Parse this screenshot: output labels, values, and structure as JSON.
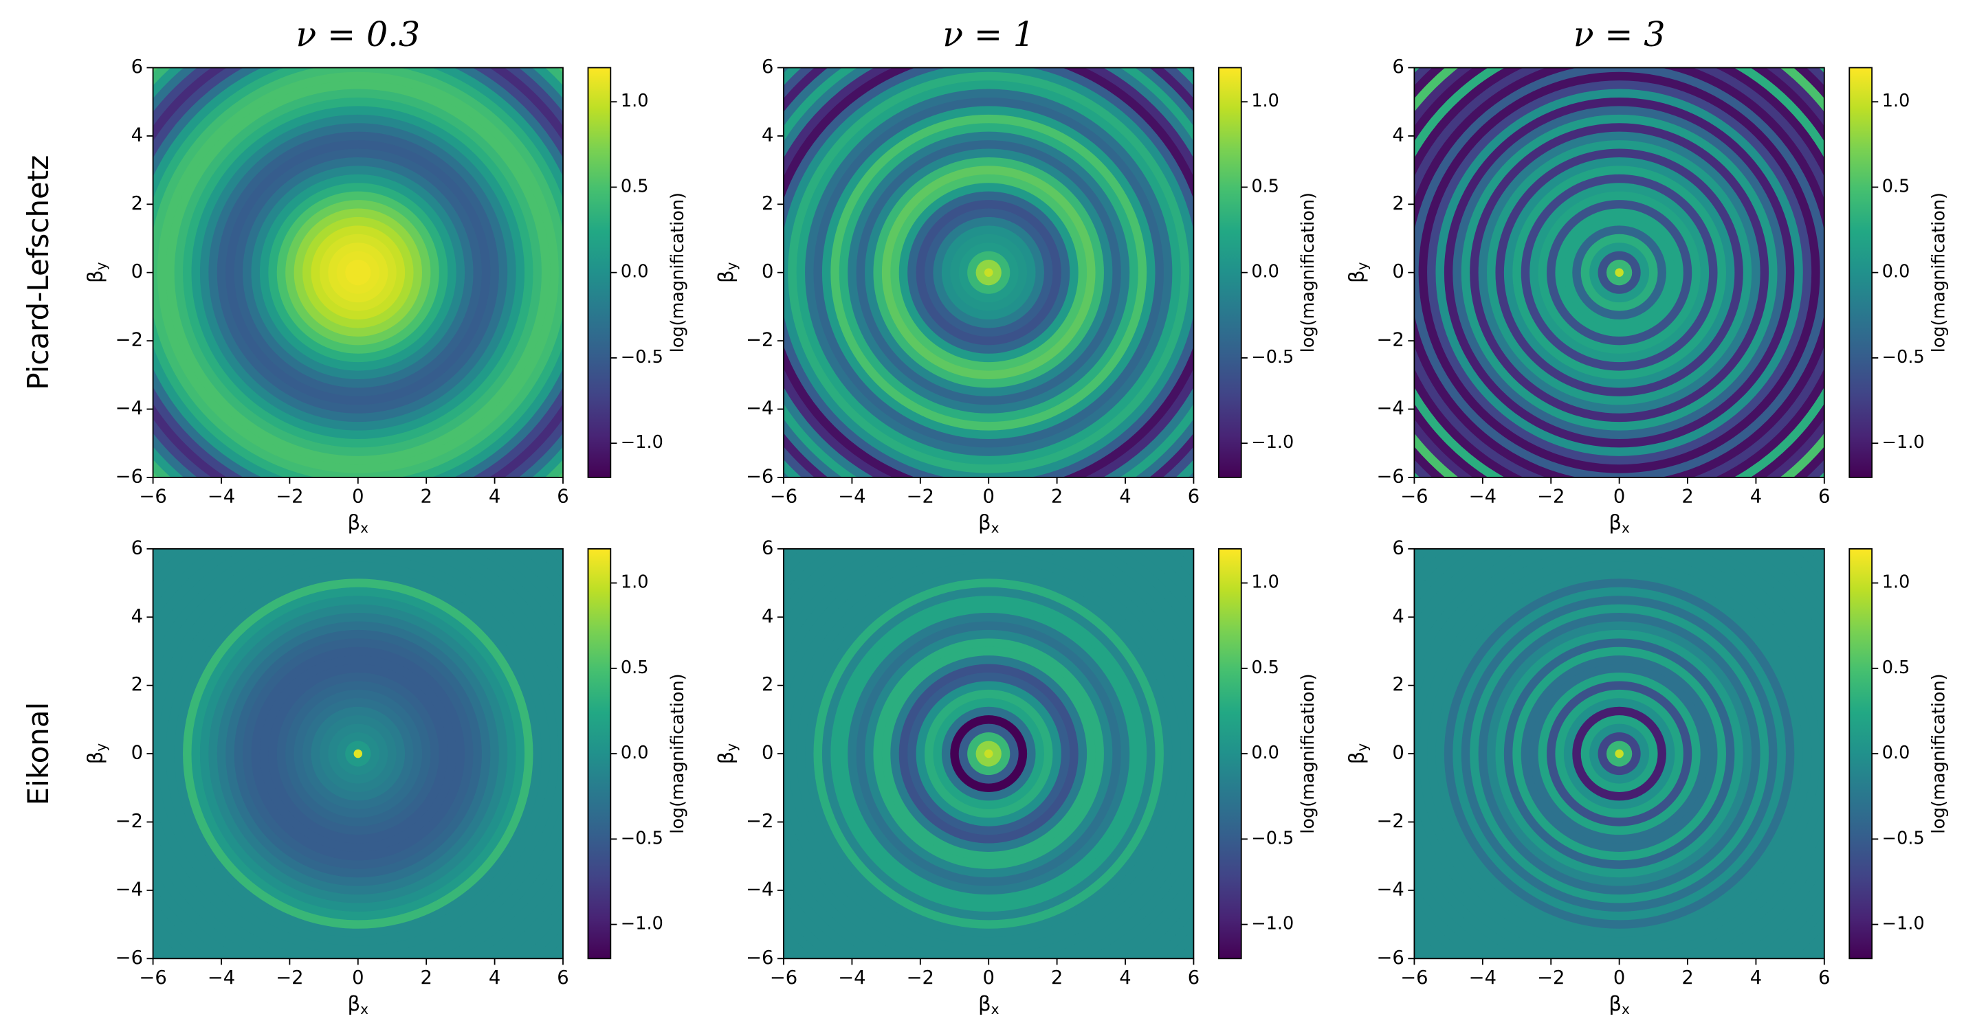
{
  "chart_data": {
    "type": "radial_heatmap",
    "titles": [
      "ν = 0.3",
      "ν = 1",
      "ν = 3"
    ],
    "row_labels": [
      "Picard-Lefschetz",
      "Eikonal"
    ],
    "xlabel": [
      "β",
      "x"
    ],
    "ylabel": [
      "β",
      "y"
    ],
    "colorbar_label": "log(magnification)",
    "cmap": "viridis",
    "clim": [
      -1.2,
      1.2
    ],
    "cticks": [
      {
        "value": -1,
        "label": "−1.0"
      },
      {
        "value": -0.5,
        "label": "−0.5"
      },
      {
        "value": 0,
        "label": "0.0"
      },
      0.5,
      {
        "value": 1,
        "label": "1.0"
      }
    ],
    "xlim": [
      -6,
      6
    ],
    "ylim": [
      -6,
      6
    ],
    "xticks": [
      {
        "value": -6,
        "label": "−6"
      },
      {
        "value": -4,
        "label": "−4"
      },
      {
        "value": -2,
        "label": "−2"
      },
      0,
      2,
      4,
      6
    ],
    "yticks": [
      {
        "value": -6,
        "label": "−6"
      },
      {
        "value": -4,
        "label": "−4"
      },
      {
        "value": -2,
        "label": "−2"
      },
      0,
      2,
      4,
      6
    ],
    "r": [
      0,
      0.25,
      0.5,
      0.75,
      1,
      1.25,
      1.5,
      1.75,
      2,
      2.25,
      2.5,
      2.75,
      3,
      3.25,
      3.5,
      3.75,
      4,
      4.25,
      4.5,
      4.75,
      5,
      5.25,
      5.5,
      5.75,
      6,
      6.25,
      6.5,
      6.75,
      7,
      7.25,
      7.5,
      7.75,
      8,
      8.25,
      8.5
    ],
    "values": [
      [
        [
          1.15,
          1.15,
          1.12,
          1.1,
          1.05,
          1.0,
          0.9,
          0.8,
          0.65,
          0.5,
          0.3,
          0.1,
          -0.1,
          -0.3,
          -0.45,
          -0.5,
          -0.45,
          -0.3,
          -0.1,
          0.1,
          0.3,
          0.4,
          0.5,
          0.5,
          0.45,
          0.3,
          0.1,
          -0.3,
          -0.7,
          -0.9,
          -0.7,
          -0.3,
          0.1,
          0.4,
          0.5
        ],
        [
          1.0,
          0.8,
          0.4,
          0.1,
          0.05,
          0.0,
          -0.2,
          -0.5,
          -0.6,
          -0.4,
          0.1,
          0.5,
          0.6,
          0.4,
          -0.1,
          -0.4,
          -0.2,
          0.3,
          0.5,
          0.1,
          -0.4,
          -0.3,
          0.2,
          0.3,
          0.0,
          -0.5,
          -1.1,
          -0.9,
          -0.2,
          0.2,
          -0.3,
          -1.0,
          -0.6,
          0.1,
          -0.3
        ],
        [
          1.0,
          0.4,
          -0.6,
          0.1,
          0.3,
          -0.4,
          0.2,
          0.2,
          -0.6,
          0.2,
          0.1,
          -0.7,
          0.2,
          0.0,
          -0.8,
          0.1,
          -0.2,
          -0.9,
          0.1,
          -0.4,
          -1.0,
          0.0,
          -0.7,
          -1.1,
          -0.5,
          -1.1,
          -0.8,
          -1.1,
          0.3,
          -1.1,
          -0.9,
          0.5,
          -1.1,
          -0.8,
          0.3
        ]
      ],
      [
        [
          1.1,
          0.1,
          -0.05,
          -0.1,
          -0.15,
          -0.2,
          -0.3,
          -0.35,
          -0.4,
          -0.45,
          -0.5,
          -0.5,
          -0.5,
          -0.45,
          -0.4,
          -0.3,
          -0.2,
          -0.1,
          0.0,
          0.1,
          0.4,
          -0.05,
          -0.05,
          -0.05,
          -0.05,
          -0.05,
          -0.05,
          -0.05,
          -0.05,
          -0.05,
          -0.05,
          -0.05,
          -0.05,
          -0.05,
          -0.05
        ],
        [
          1.0,
          0.8,
          0.4,
          -0.5,
          -1.2,
          -0.3,
          0.2,
          0.3,
          0.0,
          -0.5,
          -0.6,
          -0.2,
          0.3,
          0.3,
          -0.1,
          -0.3,
          -0.2,
          0.2,
          0.2,
          -0.1,
          0.3,
          -0.05,
          -0.05,
          -0.05,
          -0.05,
          -0.05,
          -0.05,
          -0.05,
          -0.05,
          -0.05,
          -0.05,
          -0.05,
          -0.05,
          -0.05,
          -0.05
        ],
        [
          1.0,
          0.4,
          -0.7,
          0.0,
          0.2,
          -1.0,
          0.0,
          0.2,
          -0.6,
          0.2,
          -0.3,
          -0.3,
          0.2,
          -0.4,
          0.1,
          -0.1,
          -0.3,
          0.1,
          -0.3,
          0.0,
          -0.3,
          -0.05,
          -0.05,
          -0.05,
          -0.05,
          -0.05,
          -0.05,
          -0.05,
          -0.05,
          -0.05,
          -0.05,
          -0.05,
          -0.05,
          -0.05,
          -0.05
        ]
      ]
    ]
  }
}
